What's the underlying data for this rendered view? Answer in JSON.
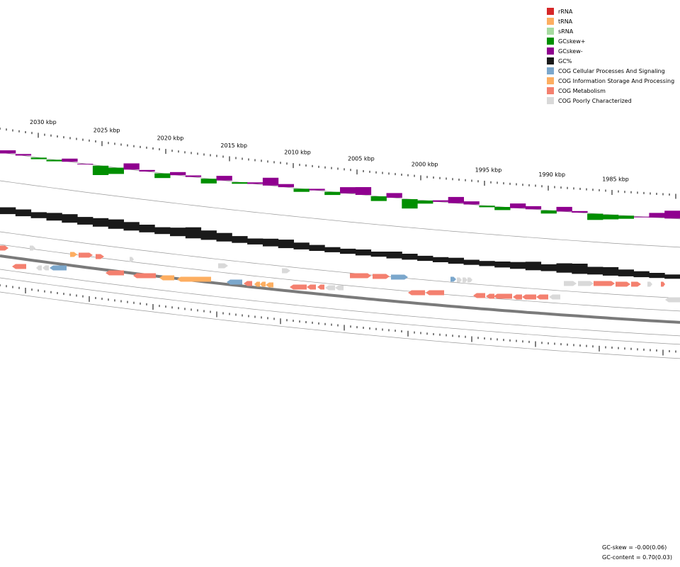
{
  "legend": [
    {
      "label": "rRNA",
      "color": "#d62728"
    },
    {
      "label": "tRNA",
      "color": "#fdae61"
    },
    {
      "label": "sRNA",
      "color": "#a6dba0"
    },
    {
      "label": "GCskew+",
      "color": "#008f00"
    },
    {
      "label": "GCskew-",
      "color": "#8f008f"
    },
    {
      "label": "GC%",
      "color": "#1a1a1a"
    },
    {
      "label": "COG Cellular Processes And Signaling",
      "color": "#7ba7cc"
    },
    {
      "label": "COG Information Storage And Processing",
      "color": "#fdae61"
    },
    {
      "label": "COG Metabolism",
      "color": "#f4806f"
    },
    {
      "label": "COG Poorly Characterized",
      "color": "#d9d9d9"
    }
  ],
  "axis": {
    "major_tick_labels": [
      "2030 kbp",
      "2025 kbp",
      "2020 kbp",
      "2015 kbp",
      "2010 kbp",
      "2005 kbp",
      "2000 kbp",
      "1995 kbp",
      "1990 kbp",
      "1985 kbp"
    ]
  },
  "stats": {
    "gc_skew": "GC-skew = -0.00(0.06)",
    "gc_content": "GC-content = 0.70(0.03)"
  }
}
